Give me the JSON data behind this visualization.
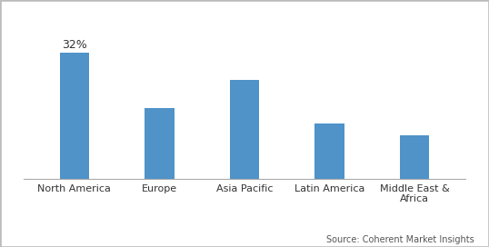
{
  "categories": [
    "North America",
    "Europe",
    "Asia Pacific",
    "Latin America",
    "Middle East &\nAfrica"
  ],
  "values": [
    32,
    18,
    25,
    14,
    11
  ],
  "bar_color": "#4f93c8",
  "annotation_label": "32%",
  "annotation_bar_index": 0,
  "source_text": "Source: Coherent Market Insights",
  "background_color": "#ffffff",
  "bar_width": 0.35,
  "ylim": [
    0,
    40
  ],
  "border_color": "#cccccc",
  "tick_label_fontsize": 8,
  "annotation_fontsize": 9,
  "source_fontsize": 7
}
